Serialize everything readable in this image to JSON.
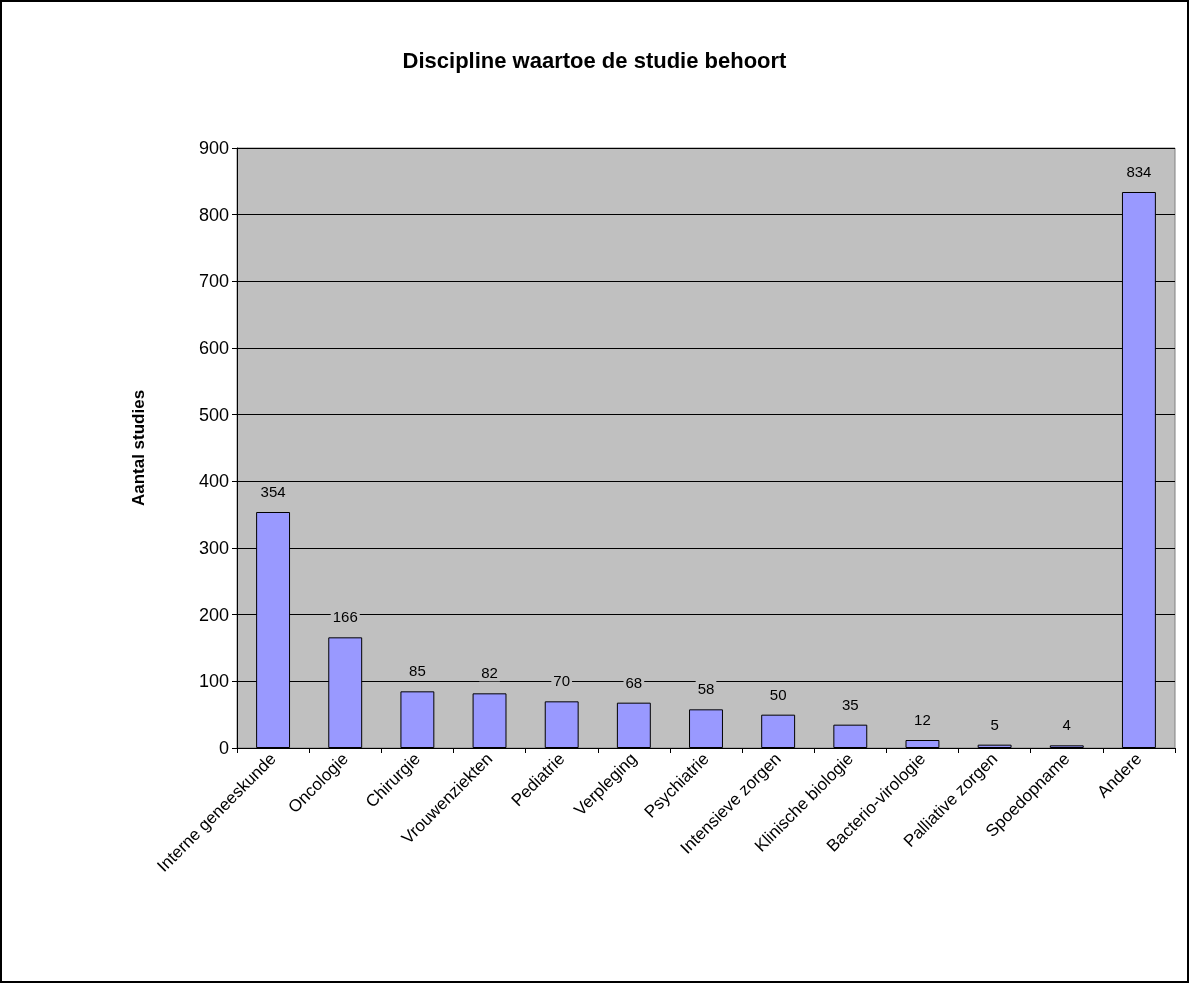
{
  "chart_data": {
    "type": "bar",
    "title": "Discipline waartoe de studie behoort",
    "ylabel": "Aantal studies",
    "categories": [
      "Interne geneeskunde",
      "Oncologie",
      "Chirurgie",
      "Vrouwenziekten",
      "Pediatrie",
      "Verpleging",
      "Psychiatrie",
      "Intensieve zorgen",
      "Klinische biologie",
      "Bacterio-virologie",
      "Palliative zorgen",
      "Spoedopname",
      "Andere"
    ],
    "values": [
      354,
      166,
      85,
      82,
      70,
      68,
      58,
      50,
      35,
      12,
      5,
      4,
      834
    ],
    "color": "#9999ff",
    "ylim": [
      0,
      900
    ],
    "yticks": [
      0,
      100,
      200,
      300,
      400,
      500,
      600,
      700,
      800,
      900
    ],
    "grid": "y",
    "data_labels": true
  }
}
